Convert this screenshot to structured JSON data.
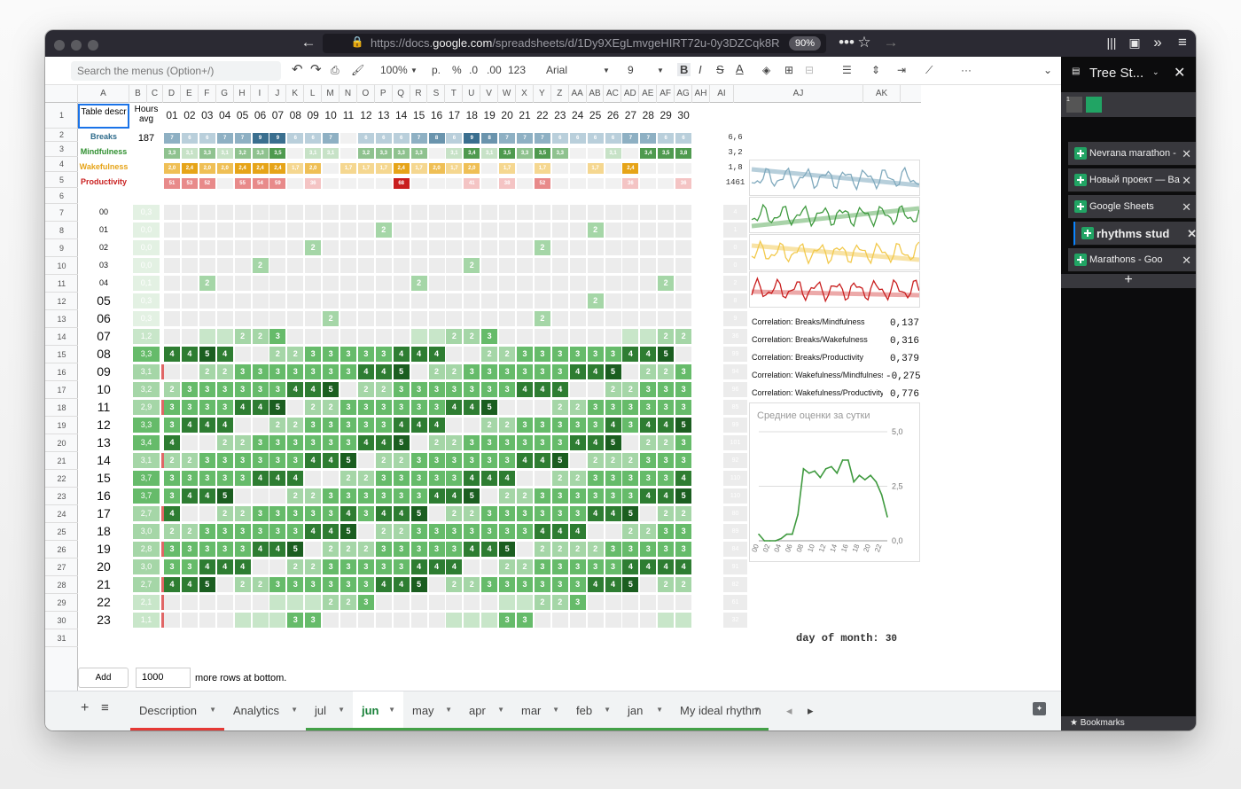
{
  "browser": {
    "url_prefix": "https://docs.",
    "url_domain": "google.com",
    "url_rest": "/spreadsheets/d/1Dy9XEgLmvgeHIRT72u-0y3DZCqk8R",
    "zoom": "90%"
  },
  "toolbar": {
    "search_placeholder": "Search the menus (Option+/)",
    "zoom": "100%",
    "currency": "р.",
    "percent": "%",
    "dec_less": ".0",
    "dec_more": ".00",
    "format": "123",
    "font": "Arial",
    "font_size": "9"
  },
  "columns": [
    "A",
    "B",
    "C",
    "D",
    "E",
    "F",
    "G",
    "H",
    "I",
    "J",
    "K",
    "L",
    "M",
    "N",
    "O",
    "P",
    "Q",
    "R",
    "S",
    "T",
    "U",
    "V",
    "W",
    "X",
    "Y",
    "Z",
    "AA",
    "AB",
    "AC",
    "AD",
    "AE",
    "AF",
    "AG",
    "AH",
    "AI",
    "AJ",
    "AK"
  ],
  "header_row": {
    "table_descr": "Table descr",
    "hours_avg": "Hours avg",
    "days": [
      "01",
      "02",
      "03",
      "04",
      "05",
      "06",
      "07",
      "08",
      "09",
      "10",
      "11",
      "12",
      "13",
      "14",
      "15",
      "16",
      "17",
      "18",
      "19",
      "20",
      "21",
      "22",
      "23",
      "24",
      "25",
      "26",
      "27",
      "28",
      "29",
      "30"
    ]
  },
  "metrics": [
    {
      "name": "Breaks",
      "color": "#2d6a8a",
      "summary": "6,6",
      "value_b": "187"
    },
    {
      "name": "Mindfulness",
      "color": "#2f8f2f",
      "summary": "3,2",
      "value_b": ""
    },
    {
      "name": "Wakefulness",
      "color": "#e6a418",
      "summary": "1,8",
      "value_b": ""
    },
    {
      "name": "Productivity",
      "color": "#c91e1e",
      "summary": "1461",
      "value_b": ""
    }
  ],
  "breaks_row": [
    "7",
    "6",
    "6",
    "7",
    "7",
    "9",
    "9",
    "6",
    "6",
    "7",
    "",
    "6",
    "6",
    "6",
    "7",
    "8",
    "6",
    "9",
    "8",
    "7",
    "7",
    "7",
    "6",
    "6",
    "6",
    "6",
    "7",
    "7",
    "6",
    "6"
  ],
  "mind_row": [
    "3,3",
    "3,1",
    "3,3",
    "3,1",
    "3,2",
    "3,3",
    "3,5",
    "",
    "3,1",
    "3,1",
    "",
    "3,2",
    "3,3",
    "3,3",
    "3,3",
    "",
    "3,1",
    "3,4",
    "3,1",
    "3,5",
    "3,3",
    "3,5",
    "3,3",
    "",
    "",
    "3,1",
    "",
    "3,4",
    "3,5",
    "3,8"
  ],
  "wake_row": [
    "2,0",
    "2,4",
    "2,0",
    "2,0",
    "2,4",
    "2,4",
    "2,4",
    "1,7",
    "2,0",
    "",
    "1,7",
    "1,7",
    "1,7",
    "2,4",
    "1,7",
    "2,0",
    "1,7",
    "2,0",
    "",
    "1,7",
    "",
    "1,7",
    "",
    "",
    "1,7",
    "",
    "2,4",
    "",
    "",
    ""
  ],
  "prod_row": [
    "51",
    "53",
    "52",
    "",
    "55",
    "54",
    "59",
    "",
    "36",
    "",
    "",
    "",
    "",
    "68",
    "",
    "",
    "",
    "41",
    "",
    "38",
    "",
    "52",
    "",
    "",
    "",
    "",
    "36",
    "",
    "",
    "36"
  ],
  "hours": [
    {
      "h": "00",
      "avg": "0,3",
      "d": "6",
      "ai": "4"
    },
    {
      "h": "01",
      "avg": "0,0",
      "d": "",
      "ai": "1"
    },
    {
      "h": "02",
      "avg": "0,0",
      "d": "",
      "ai": "0"
    },
    {
      "h": "03",
      "avg": "0,0",
      "d": "",
      "ai": "0"
    },
    {
      "h": "04",
      "avg": "0,1",
      "d": "",
      "ai": "2"
    },
    {
      "h": "05",
      "avg": "0,3",
      "d": "",
      "ai": "8"
    },
    {
      "h": "06",
      "avg": "0,3",
      "d": "",
      "ai": "9"
    },
    {
      "h": "07",
      "avg": "1,2",
      "d": "6",
      "ai": "36"
    },
    {
      "h": "08",
      "avg": "3,3",
      "d": "21",
      "ai": "99"
    },
    {
      "h": "09",
      "avg": "3,1",
      "d": "-1",
      "ai": "94"
    },
    {
      "h": "10",
      "avg": "3,2",
      "d": "3",
      "ai": "96"
    },
    {
      "h": "11",
      "avg": "2,9",
      "d": "-3",
      "ai": "85"
    },
    {
      "h": "12",
      "avg": "3,3",
      "d": "4",
      "ai": "99"
    },
    {
      "h": "13",
      "avg": "3,4",
      "d": "1",
      "ai": "101"
    },
    {
      "h": "14",
      "avg": "3,1",
      "d": "-3",
      "ai": "92"
    },
    {
      "h": "15",
      "avg": "3,7",
      "d": "6",
      "ai": "110"
    },
    {
      "h": "16",
      "avg": "3,7",
      "d": "0",
      "ai": "110"
    },
    {
      "h": "17",
      "avg": "2,7",
      "d": "-10",
      "ai": "80"
    },
    {
      "h": "18",
      "avg": "3,0",
      "d": "3",
      "ai": "89"
    },
    {
      "h": "19",
      "avg": "2,8",
      "d": "-2",
      "ai": "84"
    },
    {
      "h": "20",
      "avg": "3,0",
      "d": "2",
      "ai": "91"
    },
    {
      "h": "21",
      "avg": "2,7",
      "d": "-3",
      "ai": "82"
    },
    {
      "h": "22",
      "avg": "2,1",
      "d": "-6",
      "ai": "61"
    },
    {
      "h": "23",
      "avg": "1,1",
      "d": "-10",
      "ai": "32"
    }
  ],
  "correlations": [
    {
      "label": "Correlation: Breaks/Mindfulness",
      "value": "0,137"
    },
    {
      "label": "Correlation: Breaks/Wakefulness",
      "value": "0,316"
    },
    {
      "label": "Correlation: Breaks/Productivity",
      "value": "0,379"
    },
    {
      "label": "Correlation: Wakefulness/Mindfulness",
      "value": "-0,275"
    },
    {
      "label": "Correlation: Wakefulness/Productivity",
      "value": "0,776"
    }
  ],
  "chart_data": {
    "type": "line",
    "title": "Средние оценки за сутки",
    "categories": [
      "00",
      "01",
      "02",
      "03",
      "04",
      "05",
      "06",
      "07",
      "08",
      "09",
      "10",
      "11",
      "12",
      "13",
      "14",
      "15",
      "16",
      "17",
      "18",
      "19",
      "20",
      "21",
      "22",
      "23"
    ],
    "tick_labels": [
      "00",
      "02",
      "04",
      "06",
      "08",
      "10",
      "12",
      "14",
      "16",
      "18",
      "20",
      "22"
    ],
    "values": [
      0.3,
      0.0,
      0.0,
      0.0,
      0.1,
      0.3,
      0.3,
      1.2,
      3.3,
      3.1,
      3.2,
      2.9,
      3.3,
      3.4,
      3.1,
      3.7,
      3.7,
      2.7,
      3.0,
      2.8,
      3.0,
      2.7,
      2.1,
      1.1
    ],
    "y_ticks": [
      "0,0",
      "2,5",
      "5,0"
    ],
    "ylim": [
      0,
      5
    ]
  },
  "day_of_month": {
    "label": "day of month:",
    "value": "30"
  },
  "add_rows": {
    "button": "Add",
    "count": "1000",
    "suffix": "more rows at bottom."
  },
  "sheet_tabs": [
    "Description",
    "Analytics",
    "jul",
    "jun",
    "may",
    "apr",
    "mar",
    "feb",
    "jan",
    "My ideal rhythm"
  ],
  "active_tab": "jun",
  "sidebar": {
    "title": "Tree St...",
    "tabs": [
      {
        "n": "3",
        "label": "Nevrana marathon -"
      },
      {
        "n": "4",
        "label": "Новый проект — Ва"
      },
      {
        "n": "5",
        "label": "Google Sheets"
      },
      {
        "n": "6",
        "label": "rhythms stud"
      },
      {
        "n": "7",
        "label": "Marathons - Goo"
      }
    ],
    "bookmarks": "Bookmarks"
  }
}
